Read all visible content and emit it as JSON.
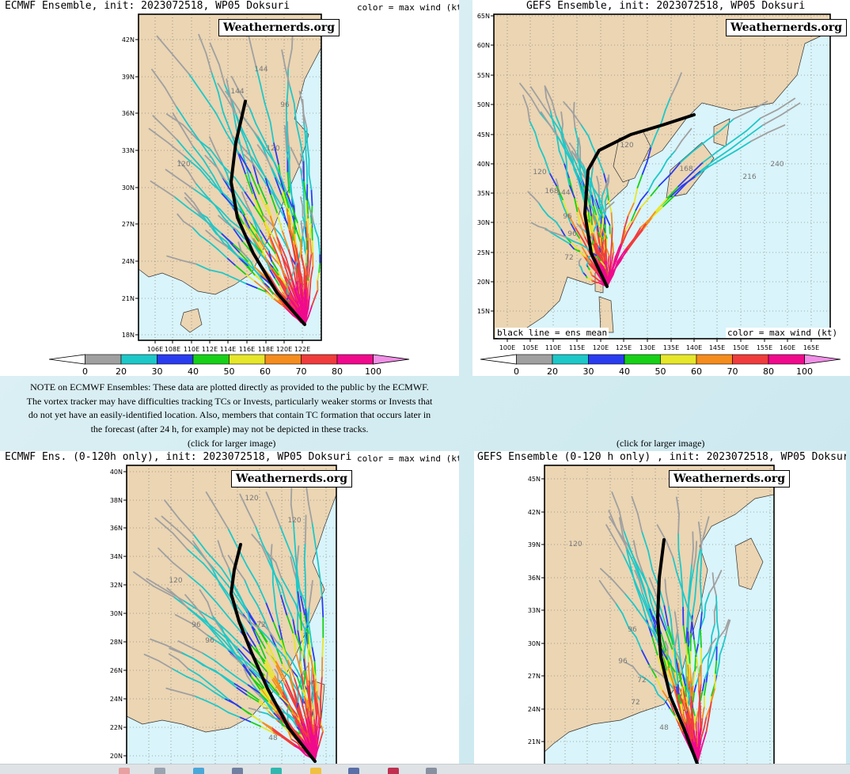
{
  "panels": [
    {
      "title": "ECMWF Ensemble, init: 2023072518, WP05 Doksuri",
      "color_legend": "color = max wind (kt)",
      "watermark": "Weathernerds.org",
      "lat_labels": [
        "42N",
        "39N",
        "36N",
        "33N",
        "30N",
        "27N",
        "24N",
        "21N",
        "18N"
      ],
      "lon_labels": [
        "106E",
        "108E",
        "110E",
        "112E",
        "114E",
        "116E",
        "118E",
        "120E",
        "122E"
      ],
      "colorbar": [
        "0",
        "20",
        "30",
        "40",
        "50",
        "60",
        "70",
        "80",
        "100"
      ]
    },
    {
      "title": "GEFS Ensemble, init: 2023072518, WP05 Doksuri",
      "mean_note": "black line = ens mean",
      "color_legend": "color = max wind (kt)",
      "watermark": "Weathernerds.org",
      "lat_labels": [
        "65N",
        "60N",
        "55N",
        "50N",
        "45N",
        "40N",
        "35N",
        "30N",
        "25N",
        "20N",
        "15N"
      ],
      "lon_labels": [
        "100E",
        "105E",
        "110E",
        "115E",
        "120E",
        "125E",
        "130E",
        "135E",
        "140E",
        "145E",
        "150E",
        "155E",
        "160E",
        "165E"
      ],
      "colorbar": [
        "0",
        "20",
        "30",
        "40",
        "50",
        "60",
        "70",
        "80",
        "100"
      ]
    },
    {
      "title": "ECMWF Ens. (0-120h only), init: 2023072518, WP05 Doksuri",
      "color_legend": "color = max wind (kt)",
      "watermark": "Weathernerds.org",
      "lat_labels": [
        "40N",
        "38N",
        "36N",
        "34N",
        "32N",
        "30N",
        "28N",
        "26N",
        "24N",
        "22N",
        "20N"
      ]
    },
    {
      "title": "GEFS Ensemble (0-120 h only) , init: 2023072518, WP05 Doksuri",
      "watermark": "Weathernerds.org",
      "lat_labels": [
        "45N",
        "42N",
        "39N",
        "36N",
        "33N",
        "30N",
        "27N",
        "24N",
        "21N"
      ]
    }
  ],
  "track_labels": {
    "p1": [
      "144",
      "120",
      "120",
      "96",
      "144"
    ],
    "p2": [
      "120",
      "216",
      "240",
      "168",
      "144",
      "96",
      "96",
      "72",
      "120",
      "168"
    ],
    "p3": [
      "120",
      "120",
      "120",
      "96",
      "96",
      "72",
      "48"
    ],
    "p4": [
      "120",
      "96",
      "96",
      "72",
      "72",
      "48"
    ]
  },
  "note": "NOTE on ECMWF Ensembles: These data are plotted directly as provided to the public by the ECMWF. The vortex tracker may have difficulties tracking TCs or Invests, particularly weaker storms or Invests that do not yet have an easily-identified location. Also, members that contain TC formation that occurs later in the forecast (after 24 h, for example) may not be depicted in these tracks.",
  "click_label_left": "(click for larger image)",
  "click_label_right": "(click for larger image)",
  "colors": {
    "land": "#ebd5b3",
    "ocean": "#d9f4fa",
    "mean_track": "#000000",
    "wind": [
      "#a0a0a0",
      "#1ec8c8",
      "#2a3cf0",
      "#18d018",
      "#e6e62a",
      "#f58c1e",
      "#f03c3c",
      "#f00a8c",
      "#f090e6"
    ]
  }
}
